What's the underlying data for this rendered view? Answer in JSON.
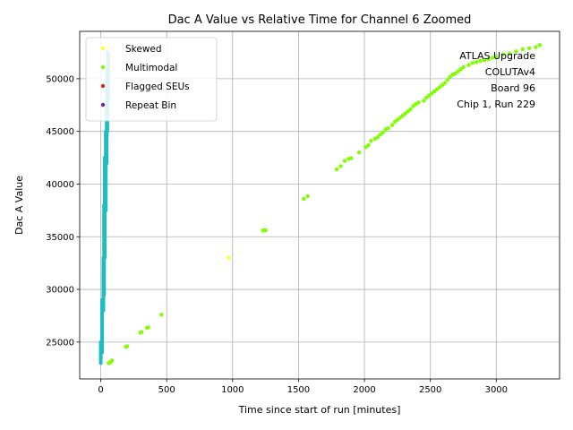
{
  "chart_data": {
    "type": "scatter",
    "title": "Dac A Value vs Relative Time for Channel 6 Zoomed",
    "xlabel": "Time since start of run [minutes]",
    "ylabel": "Dac A Value",
    "xlim": [
      -160,
      3480
    ],
    "ylim": [
      21500,
      54500
    ],
    "xticks": [
      0,
      500,
      1000,
      1500,
      2000,
      2500,
      3000
    ],
    "yticks": [
      25000,
      30000,
      35000,
      40000,
      45000,
      50000
    ],
    "grid": true,
    "legend_position": "upper-left",
    "annotation": [
      "ATLAS Upgrade",
      "COLUTAv4",
      "Board 96",
      "Chip 1, Run 229"
    ],
    "series": [
      {
        "name": "Skewed",
        "color": "#ffff33",
        "points": [
          [
            970,
            33000
          ],
          [
            55,
            53000
          ],
          [
            58,
            52800
          ]
        ]
      },
      {
        "name": "Multimodal",
        "color": "#7fff00",
        "points": [
          [
            60,
            23000
          ],
          [
            75,
            23100
          ],
          [
            85,
            23250
          ],
          [
            190,
            24550
          ],
          [
            200,
            24600
          ],
          [
            300,
            25900
          ],
          [
            310,
            25950
          ],
          [
            350,
            26350
          ],
          [
            360,
            26400
          ],
          [
            460,
            27600
          ],
          [
            1230,
            35600
          ],
          [
            1240,
            35600
          ],
          [
            1250,
            35600
          ],
          [
            1540,
            38600
          ],
          [
            1570,
            38850
          ],
          [
            1790,
            41400
          ],
          [
            1820,
            41700
          ],
          [
            1850,
            42200
          ],
          [
            1880,
            42400
          ],
          [
            1900,
            42450
          ],
          [
            1960,
            43000
          ],
          [
            2010,
            43500
          ],
          [
            2030,
            43700
          ],
          [
            2050,
            44100
          ],
          [
            2080,
            44300
          ],
          [
            2100,
            44450
          ],
          [
            2120,
            44700
          ],
          [
            2140,
            44900
          ],
          [
            2160,
            45200
          ],
          [
            2180,
            45300
          ],
          [
            2210,
            45600
          ],
          [
            2230,
            45900
          ],
          [
            2250,
            46100
          ],
          [
            2270,
            46300
          ],
          [
            2290,
            46500
          ],
          [
            2310,
            46700
          ],
          [
            2330,
            46900
          ],
          [
            2350,
            47100
          ],
          [
            2370,
            47400
          ],
          [
            2390,
            47600
          ],
          [
            2410,
            47750
          ],
          [
            2450,
            47900
          ],
          [
            2470,
            48200
          ],
          [
            2490,
            48400
          ],
          [
            2510,
            48600
          ],
          [
            2530,
            48800
          ],
          [
            2550,
            49000
          ],
          [
            2570,
            49200
          ],
          [
            2590,
            49400
          ],
          [
            2610,
            49600
          ],
          [
            2630,
            49900
          ],
          [
            2650,
            50200
          ],
          [
            2670,
            50400
          ],
          [
            2690,
            50500
          ],
          [
            2710,
            50700
          ],
          [
            2730,
            50900
          ],
          [
            2750,
            51100
          ],
          [
            2790,
            51300
          ],
          [
            2820,
            51500
          ],
          [
            2850,
            51600
          ],
          [
            2880,
            51700
          ],
          [
            2910,
            51750
          ],
          [
            2940,
            51850
          ],
          [
            2970,
            52000
          ],
          [
            3000,
            52100
          ],
          [
            3050,
            52300
          ],
          [
            3100,
            52400
          ],
          [
            3150,
            52600
          ],
          [
            3200,
            52800
          ],
          [
            3250,
            52900
          ],
          [
            3300,
            53000
          ],
          [
            3330,
            53200
          ]
        ]
      },
      {
        "name": "Flagged SEUs",
        "color": "#d62728",
        "points": []
      },
      {
        "name": "Repeat Bin",
        "color": "#7b1fa2",
        "points": []
      },
      {
        "name": "",
        "color": "#1ebdc2",
        "segments": [
          [
            [
              0,
              23000
            ],
            [
              0,
              25000
            ]
          ],
          [
            [
              10,
              24000
            ],
            [
              10,
              29000
            ]
          ],
          [
            [
              20,
              28000
            ],
            [
              20,
              33000
            ]
          ],
          [
            [
              25,
              29500
            ],
            [
              25,
              38000
            ]
          ],
          [
            [
              30,
              33000
            ],
            [
              30,
              42500
            ]
          ],
          [
            [
              38,
              37500
            ],
            [
              38,
              45000
            ]
          ],
          [
            [
              45,
              42000
            ],
            [
              45,
              48000
            ]
          ],
          [
            [
              50,
              45000
            ],
            [
              50,
              51000
            ]
          ],
          [
            [
              55,
              48000
            ],
            [
              55,
              53000
            ]
          ]
        ]
      }
    ]
  }
}
